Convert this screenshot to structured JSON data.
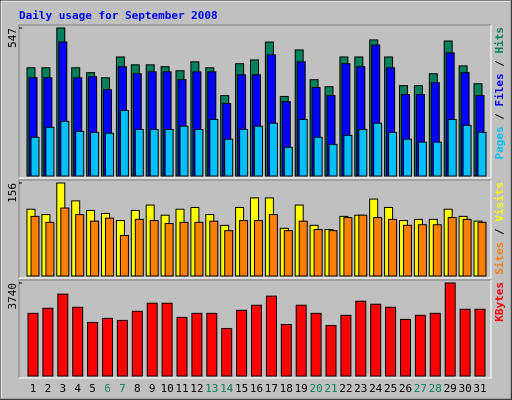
{
  "chart_data": [
    {
      "type": "bar",
      "title": "Daily usage for September 2008",
      "ylim": [
        0,
        547
      ],
      "yticks": [
        547
      ],
      "legend_separator": " / ",
      "series": [
        {
          "name": "Pages",
          "color": "#00c0ff",
          "values": [
            143,
            180,
            202,
            165,
            161,
            158,
            242,
            172,
            172,
            172,
            184,
            172,
            209,
            136,
            172,
            184,
            195,
            106,
            209,
            143,
            117,
            150,
            172,
            195,
            161,
            136,
            125,
            125,
            209,
            187,
            161
          ]
        },
        {
          "name": "Files",
          "color": "#0000ff",
          "values": [
            363,
            363,
            495,
            363,
            367,
            319,
            404,
            378,
            385,
            385,
            356,
            385,
            385,
            268,
            374,
            374,
            448,
            275,
            422,
            327,
            297,
            415,
            404,
            484,
            400,
            301,
            301,
            345,
            455,
            382,
            297
          ]
        },
        {
          "name": "Hits",
          "color": "#00805c",
          "values": [
            400,
            400,
            547,
            400,
            382,
            363,
            440,
            411,
            411,
            404,
            389,
            422,
            400,
            297,
            415,
            429,
            495,
            294,
            466,
            356,
            330,
            440,
            440,
            503,
            440,
            334,
            334,
            378,
            499,
            407,
            341
          ]
        }
      ]
    },
    {
      "type": "bar",
      "ylim": [
        0,
        156
      ],
      "yticks": [
        156
      ],
      "legend_separator": " / ",
      "series": [
        {
          "name": "Sites",
          "color": "#ff8000",
          "values": [
            100,
            90,
            114,
            103,
            92,
            97,
            68,
            95,
            93,
            88,
            90,
            90,
            92,
            76,
            93,
            93,
            103,
            76,
            92,
            78,
            76,
            98,
            102,
            98,
            95,
            85,
            86,
            86,
            98,
            95,
            90
          ]
        },
        {
          "name": "Visits",
          "color": "#ffff00",
          "values": [
            112,
            103,
            156,
            126,
            110,
            105,
            93,
            110,
            119,
            102,
            112,
            115,
            103,
            85,
            115,
            131,
            131,
            80,
            119,
            85,
            78,
            100,
            102,
            129,
            115,
            93,
            95,
            95,
            112,
            100,
            92
          ]
        }
      ]
    },
    {
      "type": "bar",
      "ylim": [
        0,
        3740
      ],
      "yticks": [
        3740
      ],
      "categories": [
        "1",
        "2",
        "3",
        "4",
        "5",
        "6",
        "7",
        "8",
        "9",
        "10",
        "11",
        "12",
        "13",
        "14",
        "15",
        "16",
        "17",
        "18",
        "19",
        "20",
        "21",
        "22",
        "23",
        "24",
        "25",
        "26",
        "27",
        "28",
        "29",
        "30",
        "31"
      ],
      "category_colors": [
        "#000000",
        "#000000",
        "#000000",
        "#000000",
        "#000000",
        "#00805c",
        "#00805c",
        "#000000",
        "#000000",
        "#000000",
        "#000000",
        "#000000",
        "#00805c",
        "#00805c",
        "#000000",
        "#000000",
        "#000000",
        "#000000",
        "#000000",
        "#00805c",
        "#00805c",
        "#000000",
        "#000000",
        "#000000",
        "#000000",
        "#000000",
        "#00805c",
        "#00805c",
        "#000000",
        "#000000",
        "#000000"
      ],
      "series": [
        {
          "name": "KBytes",
          "color": "#ff0000",
          "values": [
            2520,
            2724,
            3293,
            2764,
            2154,
            2317,
            2236,
            2602,
            2927,
            2927,
            2358,
            2520,
            2520,
            1911,
            2642,
            2846,
            3211,
            2073,
            2846,
            2520,
            2033,
            2439,
            3008,
            2886,
            2764,
            2276,
            2439,
            2520,
            3740,
            2683,
            2683
          ]
        }
      ]
    }
  ]
}
